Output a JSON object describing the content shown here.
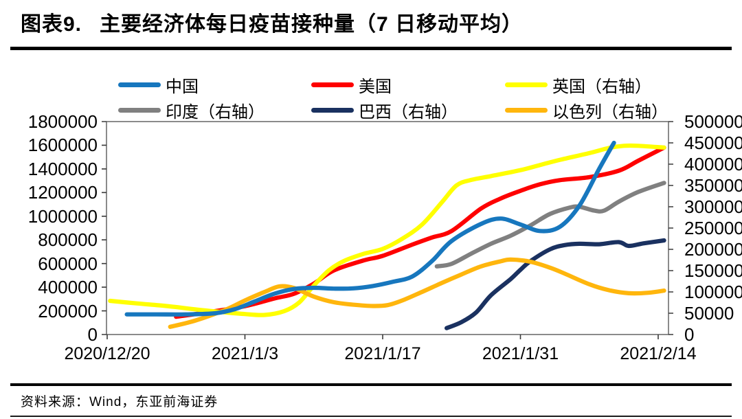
{
  "header": {
    "figure_label": "图表9.",
    "title": "主要经济体每日疫苗接种量（7 日移动平均）"
  },
  "footer": {
    "source": "资料来源：Wind，东亚前海证券"
  },
  "chart_data": {
    "type": "line",
    "title": "主要经济体每日疫苗接种量（7 日移动平均）",
    "grid": false,
    "legend_position": "top",
    "x_axis": {
      "start_date": "2020/12/20",
      "tick_days": [
        0,
        14,
        28,
        42,
        56
      ],
      "tick_labels": [
        "2020/12/20",
        "2021/1/3",
        "2021/1/17",
        "2021/1/31",
        "2021/2/14"
      ]
    },
    "left_axis": {
      "min": 0,
      "max": 1800000,
      "step": 200000
    },
    "right_axis": {
      "min": 0,
      "max": 500000,
      "step": 50000
    },
    "draw_order": [
      4,
      3,
      1,
      2,
      5,
      0
    ],
    "series": [
      {
        "name": "中国",
        "axis": "left",
        "color": "#1777BE",
        "points": [
          [
            2,
            170000
          ],
          [
            5,
            170000
          ],
          [
            8,
            170000
          ],
          [
            11,
            180000
          ],
          [
            13,
            215000
          ],
          [
            15,
            280000
          ],
          [
            17,
            345000
          ],
          [
            19,
            385000
          ],
          [
            21,
            395000
          ],
          [
            23,
            388000
          ],
          [
            25,
            390000
          ],
          [
            27,
            410000
          ],
          [
            29,
            445000
          ],
          [
            31,
            490000
          ],
          [
            33,
            620000
          ],
          [
            35,
            790000
          ],
          [
            38,
            935000
          ],
          [
            40,
            980000
          ],
          [
            42,
            930000
          ],
          [
            44,
            875000
          ],
          [
            46,
            910000
          ],
          [
            48,
            1090000
          ],
          [
            50,
            1400000
          ],
          [
            51.5,
            1620000
          ]
        ]
      },
      {
        "name": "美国",
        "axis": "left",
        "color": "#FE0000",
        "points": [
          [
            7,
            150000
          ],
          [
            10,
            185000
          ],
          [
            14,
            240000
          ],
          [
            17,
            305000
          ],
          [
            19,
            345000
          ],
          [
            21,
            430000
          ],
          [
            23,
            540000
          ],
          [
            26,
            625000
          ],
          [
            28,
            665000
          ],
          [
            31,
            760000
          ],
          [
            33,
            820000
          ],
          [
            35,
            875000
          ],
          [
            38,
            1065000
          ],
          [
            40,
            1150000
          ],
          [
            42,
            1215000
          ],
          [
            44,
            1270000
          ],
          [
            46,
            1305000
          ],
          [
            49,
            1330000
          ],
          [
            52,
            1385000
          ],
          [
            54,
            1470000
          ],
          [
            56.6,
            1580000
          ]
        ]
      },
      {
        "name": "英国（右轴）",
        "axis": "right",
        "color": "#FFFF00",
        "points": [
          [
            0.3,
            79000
          ],
          [
            3,
            73000
          ],
          [
            6,
            67000
          ],
          [
            9,
            59000
          ],
          [
            12,
            52000
          ],
          [
            14,
            48000
          ],
          [
            16,
            46000
          ],
          [
            18,
            55000
          ],
          [
            19.5,
            75000
          ],
          [
            21,
            115000
          ],
          [
            22.5,
            150000
          ],
          [
            24,
            172000
          ],
          [
            26,
            189000
          ],
          [
            28,
            201000
          ],
          [
            30,
            225000
          ],
          [
            32,
            258000
          ],
          [
            34,
            310000
          ],
          [
            35.5,
            350000
          ],
          [
            37,
            363000
          ],
          [
            39,
            372000
          ],
          [
            42,
            386000
          ],
          [
            44,
            398000
          ],
          [
            46,
            410000
          ],
          [
            49,
            426000
          ],
          [
            51,
            438000
          ],
          [
            52.5,
            443000
          ],
          [
            54,
            443000
          ],
          [
            56.6,
            439000
          ]
        ]
      },
      {
        "name": "印度（右轴）",
        "axis": "right",
        "color": "#808080",
        "points": [
          [
            33.5,
            160000
          ],
          [
            35,
            166000
          ],
          [
            37,
            190000
          ],
          [
            39,
            213000
          ],
          [
            41,
            232000
          ],
          [
            43,
            256000
          ],
          [
            45,
            283000
          ],
          [
            47,
            298000
          ],
          [
            48,
            300000
          ],
          [
            49.5,
            291000
          ],
          [
            50.5,
            291000
          ],
          [
            52,
            312000
          ],
          [
            54,
            335000
          ],
          [
            56.6,
            356000
          ]
        ]
      },
      {
        "name": "巴西（右轴）",
        "axis": "right",
        "color": "#1A3160",
        "points": [
          [
            34.5,
            15000
          ],
          [
            36,
            29000
          ],
          [
            37.5,
            52000
          ],
          [
            39,
            92000
          ],
          [
            41,
            130000
          ],
          [
            42,
            152000
          ],
          [
            43,
            172000
          ],
          [
            45,
            200000
          ],
          [
            46.5,
            210000
          ],
          [
            48,
            213000
          ],
          [
            50,
            212000
          ],
          [
            52,
            217000
          ],
          [
            53,
            208000
          ],
          [
            54.5,
            214000
          ],
          [
            56.6,
            221000
          ]
        ]
      },
      {
        "name": "以色列（右轴）",
        "axis": "right",
        "color": "#FFB60D",
        "points": [
          [
            6.4,
            18000
          ],
          [
            9,
            33000
          ],
          [
            12,
            58000
          ],
          [
            14,
            80000
          ],
          [
            16,
            100000
          ],
          [
            17.5,
            113000
          ],
          [
            19,
            109000
          ],
          [
            21,
            89000
          ],
          [
            23,
            76000
          ],
          [
            25,
            70000
          ],
          [
            27,
            67000
          ],
          [
            28.5,
            69000
          ],
          [
            30,
            80000
          ],
          [
            32,
            100000
          ],
          [
            34,
            121000
          ],
          [
            36,
            141000
          ],
          [
            38,
            160000
          ],
          [
            40,
            172000
          ],
          [
            41,
            176000
          ],
          [
            43,
            171000
          ],
          [
            45,
            157000
          ],
          [
            46.5,
            143000
          ],
          [
            49,
            118000
          ],
          [
            51,
            104000
          ],
          [
            53,
            97000
          ],
          [
            55,
            98000
          ],
          [
            56.6,
            103000
          ]
        ]
      }
    ]
  }
}
